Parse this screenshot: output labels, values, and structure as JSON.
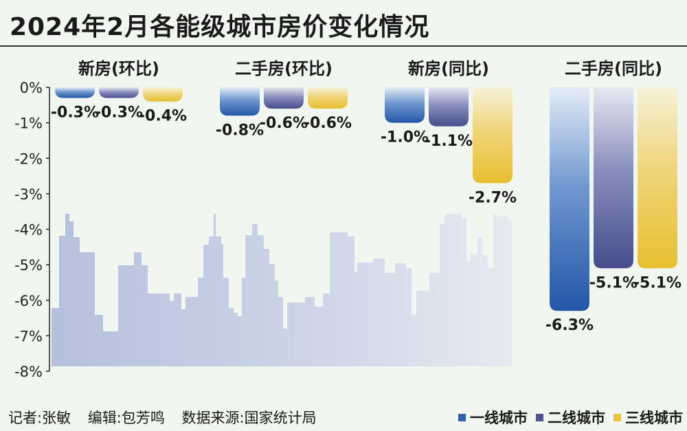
{
  "title": "2024年2月各能级城市房价变化情况",
  "footer": {
    "reporter": "记者:张敏",
    "editor": "编辑:包芳鸣",
    "source": "数据来源:国家统计局"
  },
  "colors": {
    "tier1": "#2e62b0",
    "tier2": "#4d5493",
    "tier3": "#e9c53a",
    "skyline": "#b9c3dc"
  },
  "chart_data": {
    "type": "bar",
    "categories": [
      "新房(环比)",
      "二手房(环比)",
      "新房(同比)",
      "二手房(同比)"
    ],
    "series": [
      {
        "name": "一线城市",
        "values": [
          -0.3,
          -0.8,
          -1.0,
          -6.3
        ],
        "labels": [
          "-0.3%",
          "-0.8%",
          "-1.0%",
          "-6.3%"
        ]
      },
      {
        "name": "二线城市",
        "values": [
          -0.3,
          -0.6,
          -1.1,
          -5.1
        ],
        "labels": [
          "-0.3%",
          "-0.6%",
          "-1.1%",
          "-5.1%"
        ]
      },
      {
        "name": "三线城市",
        "values": [
          -0.4,
          -0.6,
          -2.7,
          -5.1
        ],
        "labels": [
          "-0.4%",
          "-0.6%",
          "-2.7%",
          "-5.1%"
        ]
      }
    ],
    "yticks": [
      "0%",
      "-1%",
      "-2%",
      "-3%",
      "-4%",
      "-5%",
      "-6%",
      "-7%",
      "-8%"
    ],
    "ylim": [
      -8,
      0
    ],
    "legend_position": "bottom-right"
  }
}
